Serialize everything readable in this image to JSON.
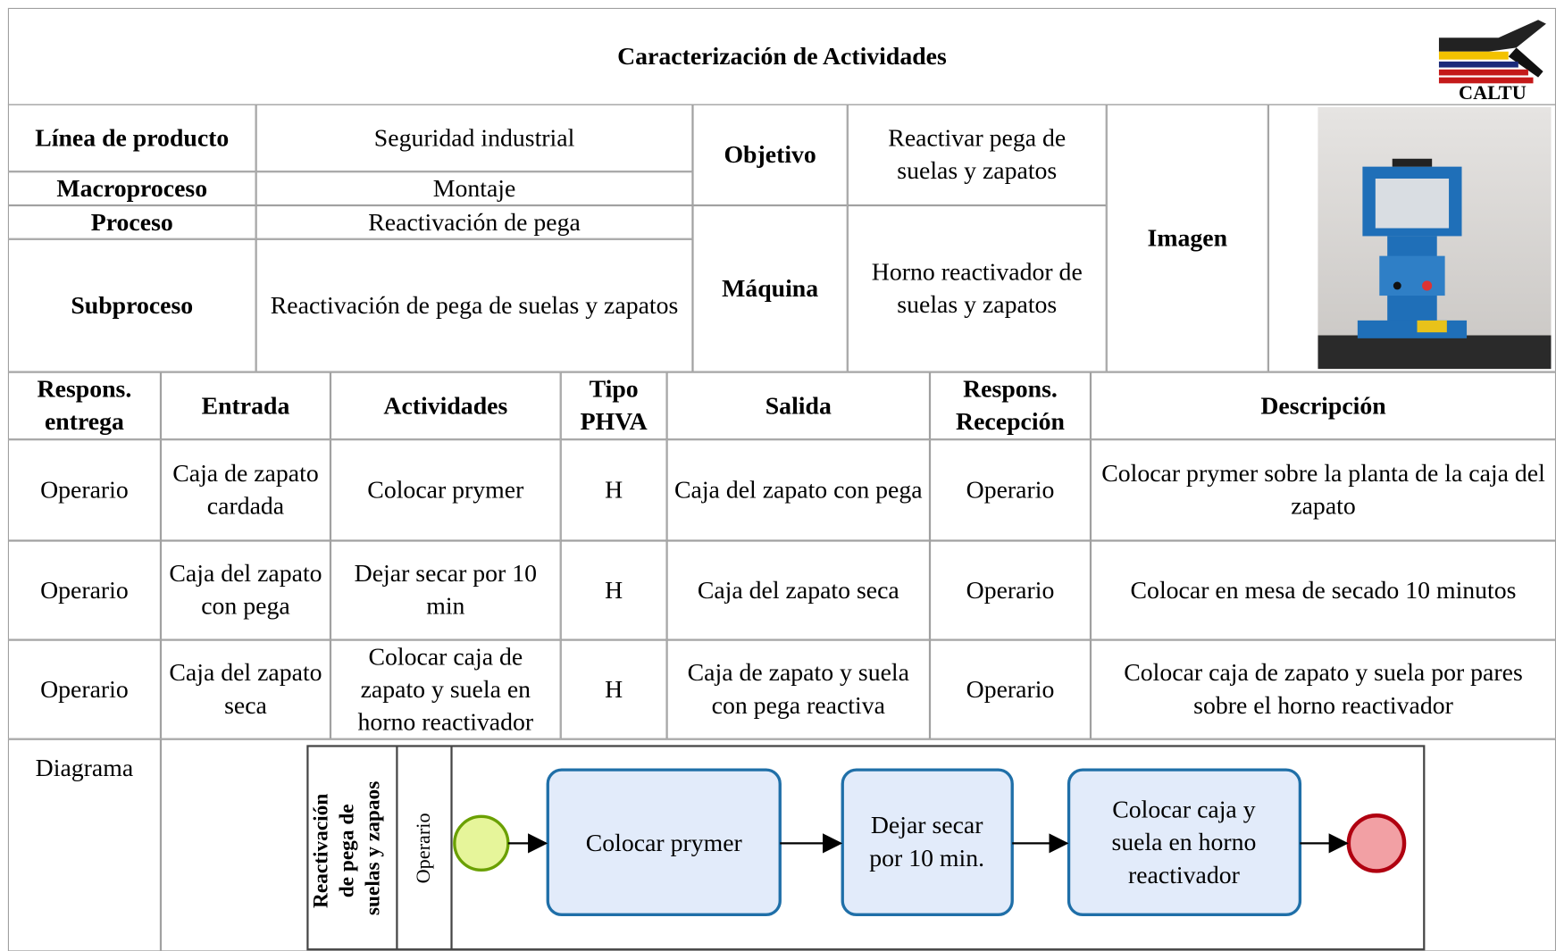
{
  "header": {
    "title": "Caracterización de Actividades",
    "logo_text": "CALTU"
  },
  "info": {
    "rows": [
      [
        "Línea de producto",
        "Seguridad industrial"
      ],
      [
        "Macroproceso",
        "Montaje"
      ],
      [
        "Proceso",
        "Reactivación de pega"
      ],
      [
        "Subproceso",
        "Reactivación de pega de suelas y zapatos"
      ]
    ],
    "objetivo": {
      "label": "Objetivo",
      "value": "Reactivar pega de suelas y zapatos"
    },
    "maquina": {
      "label": "Máquina",
      "value": "Horno reactivador de suelas y zapatos"
    },
    "imagen_label": "Imagen"
  },
  "table": {
    "headers": [
      "Respons. entrega",
      "Entrada",
      "Actividades",
      "Tipo PHVA",
      "Salida",
      "Respons. Recepción",
      "Descripción"
    ],
    "rows": [
      [
        "Operario",
        "Caja de zapato cardada",
        "Colocar prymer",
        "H",
        "Caja del zapato con pega",
        "Operario",
        "Colocar prymer sobre la planta de la caja del zapato"
      ],
      [
        "Operario",
        "Caja del zapato con pega",
        "Dejar secar por 10 min",
        "H",
        "Caja del zapato seca",
        "Operario",
        "Colocar en mesa de secado 10 minutos"
      ],
      [
        "Operario",
        "Caja del zapato seca",
        "Colocar caja de zapato y suela en horno reactivador",
        "H",
        "Caja de zapato y suela con pega reactiva",
        "Operario",
        "Colocar caja de zapato y suela por pares sobre el horno reactivador"
      ]
    ]
  },
  "diagram": {
    "label": "Diagrama",
    "pool_label": [
      "Reactivación",
      "de pega de",
      "suelas y zapaos"
    ],
    "lane_label": "Operario",
    "tasks": [
      [
        "Colocar prymer"
      ],
      [
        "Dejar secar",
        "por 10 min."
      ],
      [
        "Colocar caja y",
        "suela en horno",
        "reactivador"
      ]
    ]
  }
}
